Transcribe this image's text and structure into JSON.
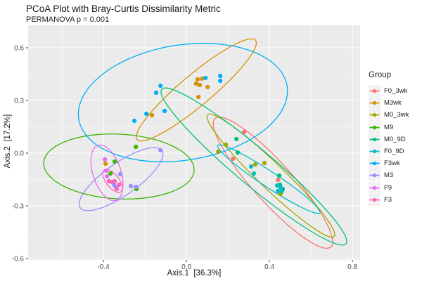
{
  "title": "PCoA Plot with Bray-Curtis Dissimilarity Metric",
  "subtitle": "PERMANOVA p = 0.001",
  "legend": {
    "title": "Group",
    "items": [
      {
        "label": "F0_3wk",
        "color": "#F8766D"
      },
      {
        "label": "M3wk",
        "color": "#D89000"
      },
      {
        "label": "M0_3wk",
        "color": "#A3A500"
      },
      {
        "label": "M9",
        "color": "#39B600"
      },
      {
        "label": "M0_9D",
        "color": "#00BF7D"
      },
      {
        "label": "F0_9D",
        "color": "#00BFC4"
      },
      {
        "label": "F3wk",
        "color": "#00B0F6"
      },
      {
        "label": "M3",
        "color": "#9590FF"
      },
      {
        "label": "F9",
        "color": "#E76BF3"
      },
      {
        "label": "F3",
        "color": "#FF62BC"
      }
    ]
  },
  "chart_data": {
    "type": "scatter",
    "title": "PCoA Plot with Bray-Curtis Dissimilarity Metric",
    "subtitle": "PERMANOVA p = 0.001",
    "xlabel": "Axis.1  [36.3%]",
    "ylabel": "Axis.2  [17.2%]",
    "xlim": [
      -0.763,
      0.837
    ],
    "ylim": [
      -0.608,
      0.728
    ],
    "x_ticks": [
      {
        "v": -0.4,
        "label": "-0.4"
      },
      {
        "v": 0.0,
        "label": "0.0"
      },
      {
        "v": 0.4,
        "label": "0.4"
      },
      {
        "v": 0.8,
        "label": "0.8"
      }
    ],
    "y_ticks": [
      {
        "v": 0.6,
        "label": "0.6"
      },
      {
        "v": 0.3,
        "label": "0.3"
      },
      {
        "v": 0.0,
        "label": "0.0"
      },
      {
        "v": -0.3,
        "label": "-0.3"
      },
      {
        "v": -0.6,
        "label": "-0.6"
      }
    ],
    "grid": "on",
    "legend_position": "right",
    "panel_bg": "#EBEBEB",
    "grid_color": "#FFFFFF",
    "tick_text_color": "#4D4D4D",
    "series": [
      {
        "name": "F0_3wk",
        "color": "#F8766D",
        "points": [
          [
            0.278,
            0.12
          ],
          [
            0.224,
            -0.032
          ],
          [
            0.441,
            -0.152
          ]
        ],
        "ellipse": {
          "major": [
            [
              0.138,
              0.198
            ],
            [
              0.696,
              -0.534
            ]
          ],
          "minor": [
            [
              0.346,
              -0.243
            ],
            [
              0.487,
              -0.093
            ]
          ]
        }
      },
      {
        "name": "M3wk",
        "color": "#D89000",
        "points": [
          [
            0.054,
            0.42
          ],
          [
            0.075,
            0.424
          ],
          [
            0.047,
            0.396
          ],
          [
            0.064,
            0.388
          ],
          [
            0.102,
            0.376
          ],
          [
            0.058,
            0.32
          ],
          [
            -0.166,
            0.216
          ],
          [
            -0.39,
            -0.06
          ]
        ],
        "ellipse": {
          "major": [
            [
              0.333,
              0.643
            ],
            [
              -0.238,
              0.077
            ]
          ],
          "minor": [
            [
              0.095,
              0.292
            ],
            [
              0.0,
              0.428
            ]
          ]
        }
      },
      {
        "name": "M0_3wk",
        "color": "#A3A500",
        "points": [
          [
            0.19,
            0.048
          ],
          [
            0.153,
            0.008
          ],
          [
            0.332,
            -0.064
          ],
          [
            0.376,
            -0.056
          ],
          [
            0.454,
            -0.232
          ]
        ],
        "ellipse": {
          "major": [
            [
              0.102,
              0.219
            ],
            [
              0.712,
              -0.475
            ]
          ],
          "minor": [
            [
              0.364,
              -0.18
            ],
            [
              0.449,
              -0.076
            ]
          ]
        }
      },
      {
        "name": "M9",
        "color": "#39B600",
        "points": [
          [
            -0.244,
            0.036
          ],
          [
            -0.346,
            -0.048
          ],
          [
            -0.366,
            -0.116
          ],
          [
            -0.241,
            -0.204
          ]
        ],
        "ellipse": {
          "major": [
            [
              -0.688,
              -0.054
            ],
            [
              0.037,
              -0.098
            ]
          ],
          "minor": [
            [
              -0.334,
              -0.26
            ],
            [
              -0.317,
              0.108
            ]
          ]
        }
      },
      {
        "name": "M0_9D",
        "color": "#00BF7D",
        "points": [
          [
            0.241,
            0.08
          ],
          [
            0.247,
            0.004
          ],
          [
            0.447,
            -0.128
          ],
          [
            0.451,
            -0.18
          ],
          [
            0.464,
            -0.204
          ]
        ],
        "ellipse": {
          "major": [
            [
              -0.119,
              0.364
            ],
            [
              0.769,
              -0.516
            ]
          ],
          "minor": [
            [
              0.269,
              -0.156
            ],
            [
              0.382,
              0.004
            ]
          ]
        }
      },
      {
        "name": "F0_9D",
        "color": "#00BFC4",
        "points": [
          [
            0.312,
            -0.076
          ],
          [
            0.325,
            -0.116
          ],
          [
            0.437,
            -0.184
          ],
          [
            0.454,
            -0.196
          ],
          [
            0.441,
            -0.216
          ],
          [
            0.461,
            -0.216
          ]
        ],
        "ellipse": {
          "major": [
            [
              0.151,
              0.044
            ],
            [
              0.643,
              -0.34
            ]
          ],
          "minor": [
            [
              0.376,
              -0.185
            ],
            [
              0.417,
              -0.111
            ]
          ]
        }
      },
      {
        "name": "F3wk",
        "color": "#00B0F6",
        "points": [
          [
            -0.125,
            0.384
          ],
          [
            -0.146,
            0.344
          ],
          [
            0.092,
            0.428
          ],
          [
            0.163,
            0.44
          ],
          [
            0.163,
            0.412
          ],
          [
            -0.105,
            0.24
          ],
          [
            -0.193,
            0.224
          ],
          [
            -0.251,
            0.184
          ]
        ],
        "ellipse": {
          "major": [
            [
              -0.519,
              0.194
            ],
            [
              0.485,
              0.382
            ]
          ],
          "minor": [
            [
              0.026,
              -0.036
            ],
            [
              -0.06,
              0.612
            ]
          ]
        }
      },
      {
        "name": "M3",
        "color": "#9590FF",
        "points": [
          [
            -0.125,
            0.016
          ],
          [
            -0.319,
            -0.12
          ],
          [
            -0.349,
            -0.18
          ],
          [
            -0.339,
            -0.196
          ],
          [
            -0.268,
            -0.188
          ],
          [
            -0.244,
            -0.192
          ]
        ],
        "ellipse": {
          "major": [
            [
              -0.118,
              0.015
            ],
            [
              -0.512,
              -0.311
            ]
          ],
          "minor": [
            [
              -0.27,
              -0.223
            ],
            [
              -0.36,
              -0.073
            ]
          ]
        }
      },
      {
        "name": "F9",
        "color": "#E76BF3",
        "points": [
          [
            -0.393,
            -0.036
          ],
          [
            -0.386,
            -0.1
          ],
          [
            -0.383,
            -0.132
          ]
        ],
        "ellipse": {
          "major": [
            [
              -0.426,
              0.044
            ],
            [
              -0.34,
              -0.268
            ]
          ],
          "minor": [
            [
              -0.319,
              -0.087
            ],
            [
              -0.447,
              -0.137
            ]
          ]
        }
      },
      {
        "name": "F3",
        "color": "#FF62BC",
        "points": [
          [
            -0.373,
            -0.16
          ],
          [
            -0.359,
            -0.164
          ],
          [
            -0.346,
            -0.16
          ],
          [
            -0.336,
            -0.204
          ],
          [
            -0.325,
            -0.18
          ]
        ],
        "ellipse": {
          "major": [
            [
              -0.397,
              -0.097
            ],
            [
              -0.315,
              -0.219
            ]
          ],
          "minor": [
            [
              -0.38,
              -0.179
            ],
            [
              -0.332,
              -0.133
            ]
          ]
        }
      }
    ]
  }
}
